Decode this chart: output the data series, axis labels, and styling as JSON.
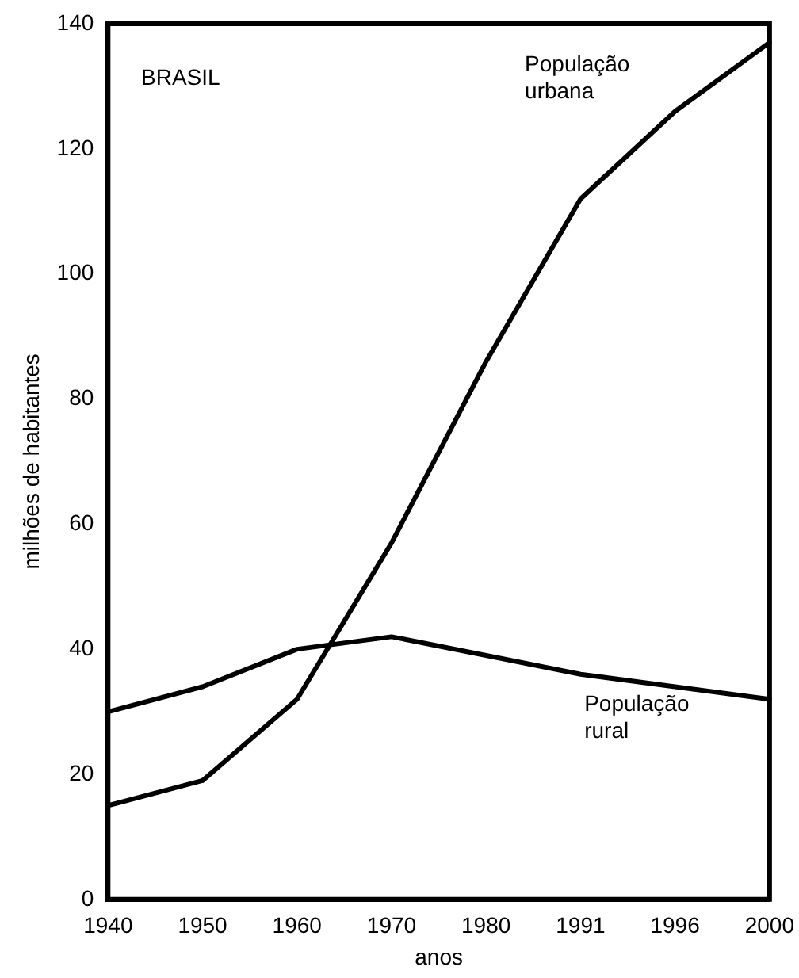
{
  "chart_data": {
    "type": "line",
    "categories": [
      "1940",
      "1950",
      "1960",
      "1970",
      "1980",
      "1991",
      "1996",
      "2000"
    ],
    "series": [
      {
        "name": "População urbana",
        "color": "#000000",
        "values": [
          15,
          19,
          32,
          57,
          86,
          112,
          126,
          137
        ]
      },
      {
        "name": "População rural",
        "color": "#000000",
        "values": [
          30,
          34,
          40,
          42,
          39,
          36,
          34,
          32
        ]
      }
    ],
    "xlabel": "anos",
    "ylabel": "milhões de habitantes",
    "annotations": [
      "BRASIL"
    ],
    "ylim": [
      0,
      140
    ],
    "yticks": [
      0,
      20,
      40,
      60,
      80,
      100,
      120,
      140
    ],
    "grid": false,
    "legend": false,
    "marker": "none",
    "line_style": "solid"
  }
}
